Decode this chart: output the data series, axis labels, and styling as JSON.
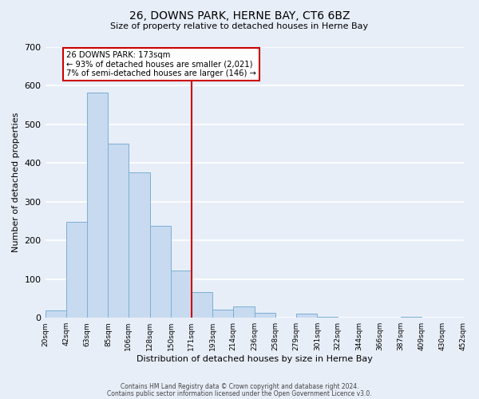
{
  "title": "26, DOWNS PARK, HERNE BAY, CT6 6BZ",
  "subtitle": "Size of property relative to detached houses in Herne Bay",
  "xlabel": "Distribution of detached houses by size in Herne Bay",
  "ylabel": "Number of detached properties",
  "bar_color": "#c8daf0",
  "bar_edge_color": "#7bafd4",
  "background_color": "#e8eef8",
  "grid_color": "#ffffff",
  "bins": [
    20,
    42,
    63,
    85,
    106,
    128,
    150,
    171,
    193,
    214,
    236,
    258,
    279,
    301,
    322,
    344,
    366,
    387,
    409,
    430,
    452
  ],
  "values": [
    18,
    248,
    583,
    450,
    375,
    238,
    122,
    67,
    22,
    30,
    12,
    0,
    10,
    2,
    0,
    0,
    0,
    2,
    0,
    0
  ],
  "vline_x": 171,
  "vline_color": "#cc0000",
  "annotation_title": "26 DOWNS PARK: 173sqm",
  "annotation_line1": "← 93% of detached houses are smaller (2,021)",
  "annotation_line2": "7% of semi-detached houses are larger (146) →",
  "annotation_box_color": "#ffffff",
  "annotation_box_edge": "#cc0000",
  "ylim": [
    0,
    700
  ],
  "yticks": [
    0,
    100,
    200,
    300,
    400,
    500,
    600,
    700
  ],
  "footer1": "Contains HM Land Registry data © Crown copyright and database right 2024.",
  "footer2": "Contains public sector information licensed under the Open Government Licence v3.0."
}
